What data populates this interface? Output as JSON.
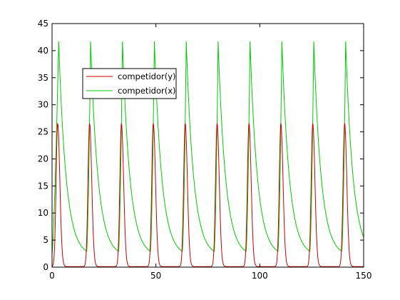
{
  "chart_data": {
    "type": "line",
    "title": "",
    "xlabel": "",
    "ylabel": "",
    "xlim": [
      0,
      150
    ],
    "ylim": [
      0,
      45
    ],
    "xticks": [
      0,
      50,
      100,
      150
    ],
    "yticks": [
      0,
      5,
      10,
      15,
      20,
      25,
      30,
      35,
      40,
      45
    ],
    "xtick_labels": [
      "0",
      "50",
      "100",
      "150"
    ],
    "ytick_labels": [
      "0",
      "5",
      "10",
      "15",
      "20",
      "25",
      "30",
      "35",
      "40",
      "45"
    ],
    "grid": false,
    "legend_position": "upper-left",
    "series": [
      {
        "name": "competidor(y)",
        "color": "#cc0000",
        "pattern": "periodic spikes",
        "period": 15.35,
        "first_peak_x": 2.7,
        "peak_y": 26.5,
        "baseline_y": 0.1
      },
      {
        "name": "competidor(x)",
        "color": "#00cc00",
        "pattern": "periodic sawtooth",
        "period": 15.35,
        "first_peak_x": 3.2,
        "peak_y": 41.7,
        "trough_y": 2.0,
        "initial_y": 2.5,
        "end_y": 5.0
      }
    ]
  }
}
